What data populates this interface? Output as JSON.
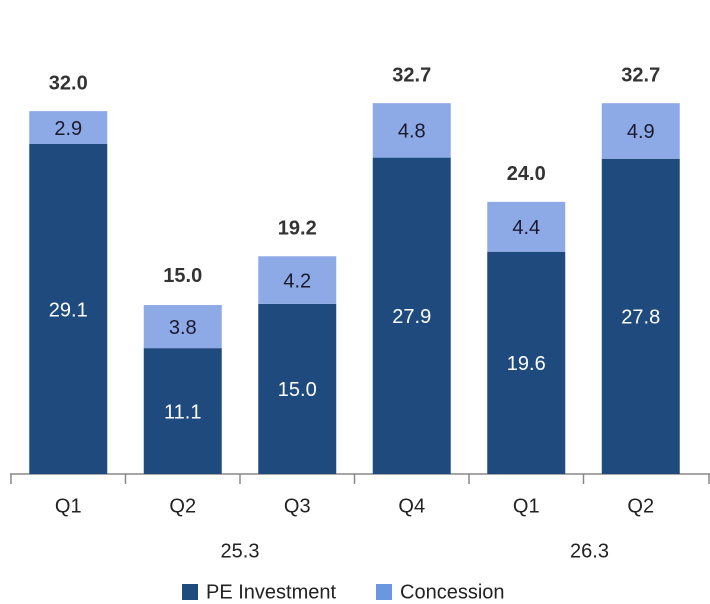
{
  "chart_data": {
    "type": "stacked-bar",
    "categories": [
      "Q1",
      "Q2",
      "Q3",
      "Q4",
      "Q1",
      "Q2"
    ],
    "groups": [
      {
        "label": "25.3",
        "count": 4
      },
      {
        "label": "26.3",
        "count": 2
      }
    ],
    "series": [
      {
        "name": "PE Investment",
        "color": "#1f4a7e",
        "values": [
          29.1,
          11.1,
          15.0,
          27.9,
          19.6,
          27.8
        ],
        "value_labels": [
          "29.1",
          "11.1",
          "15.0",
          "27.9",
          "19.6",
          "27.8"
        ]
      },
      {
        "name": "Concession",
        "color": "#8eaae6",
        "values": [
          2.9,
          3.8,
          4.2,
          4.8,
          4.4,
          4.9
        ],
        "value_labels": [
          "2.9",
          "3.8",
          "4.2",
          "4.8",
          "4.4",
          "4.9"
        ]
      }
    ],
    "totals": [
      32.0,
      15.0,
      19.2,
      32.7,
      24.0,
      32.7
    ],
    "total_labels": [
      "32.0",
      "15.0",
      "19.2",
      "32.7",
      "24.0",
      "32.7"
    ]
  }
}
